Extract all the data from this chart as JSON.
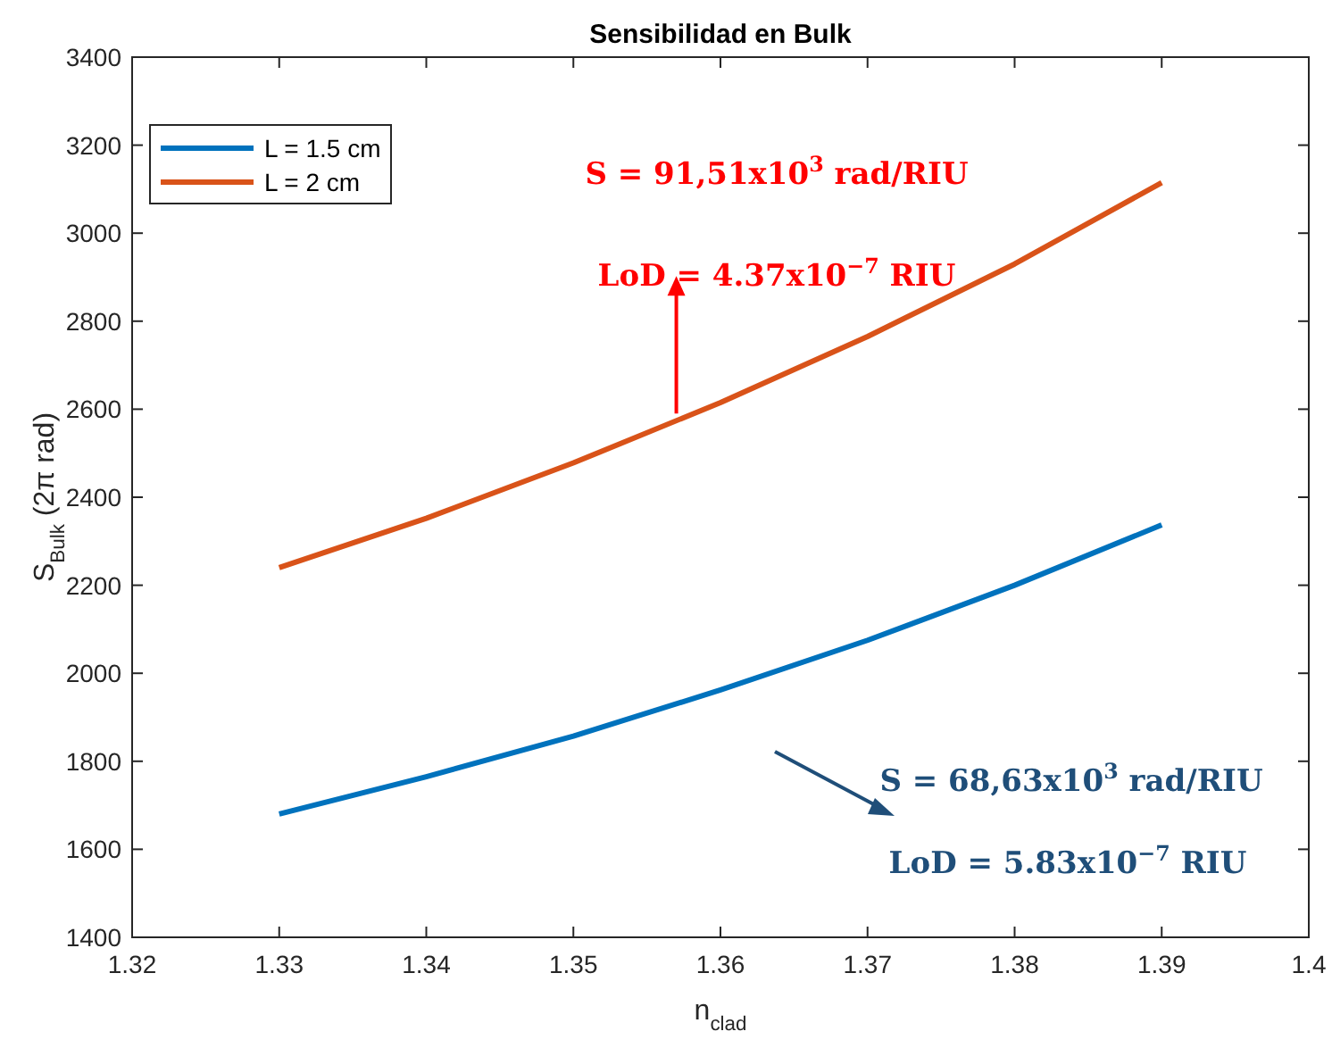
{
  "chart_data": {
    "type": "line",
    "title": "Sensibilidad en Bulk",
    "xlabel": "n$_{clad}$",
    "ylabel": "S$_{Bulk}$ (2π rad)",
    "x": [
      1.33,
      1.34,
      1.35,
      1.36,
      1.37,
      1.38,
      1.39
    ],
    "series": [
      {
        "name": "L = 1.5 cm",
        "color": "#0072bd",
        "values": [
          1680,
          1765,
          1857,
          1962,
          2075,
          2200,
          2337
        ]
      },
      {
        "name": "L = 2 cm",
        "color": "#d95319",
        "values": [
          2240,
          2352,
          2478,
          2615,
          2765,
          2930,
          3115
        ]
      }
    ],
    "xlim": [
      1.32,
      1.4
    ],
    "xticks": [
      1.32,
      1.33,
      1.34,
      1.35,
      1.36,
      1.37,
      1.38,
      1.39,
      1.4
    ],
    "ylim": [
      1400,
      3400
    ],
    "yticks": [
      1400,
      1600,
      1800,
      2000,
      2200,
      2400,
      2600,
      2800,
      3000,
      3200,
      3400
    ],
    "grid": false,
    "legend": "top left",
    "marker": "none",
    "line_style": "solid",
    "annotations": [
      "S = 91,51x10$^{3}$ rad/RIU",
      {
        "text": "LoD = 4.37x10$^{−7}$ RIU",
        "x": 1.357,
        "y": 2574
      },
      "S = 68,63x10$^{3}$ rad/RIU",
      "LoD = 5.83x10$^{−7}$ RIU"
    ]
  }
}
